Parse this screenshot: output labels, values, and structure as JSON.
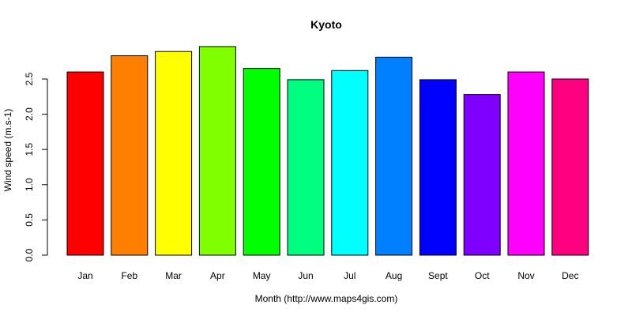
{
  "chart_data": {
    "type": "bar",
    "title": "Kyoto",
    "xlabel": "Month (http://www.maps4gis.com)",
    "ylabel": "Wind speed (m.s-1)",
    "categories": [
      "Jan",
      "Feb",
      "Mar",
      "Apr",
      "May",
      "Jun",
      "Jul",
      "Aug",
      "Sept",
      "Oct",
      "Nov",
      "Dec"
    ],
    "values": [
      2.6,
      2.83,
      2.89,
      2.96,
      2.65,
      2.49,
      2.62,
      2.81,
      2.49,
      2.28,
      2.6,
      2.5
    ],
    "colors": [
      "#FF0000",
      "#FF8000",
      "#FFFF00",
      "#80FF00",
      "#00FF00",
      "#00FF80",
      "#00FFFF",
      "#0080FF",
      "#0000FF",
      "#8000FF",
      "#FF00FF",
      "#FF0080"
    ],
    "yticks": [
      "0.0",
      "0.5",
      "1.0",
      "1.5",
      "2.0",
      "2.5"
    ],
    "ylim": [
      0,
      2.96
    ],
    "grid": false,
    "legend": "none"
  }
}
